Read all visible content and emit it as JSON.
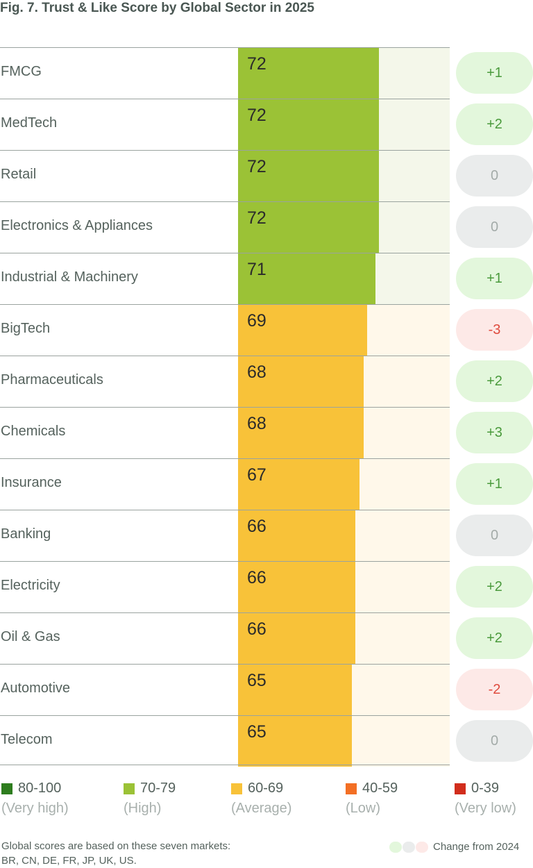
{
  "chart_data": {
    "type": "bar",
    "orientation": "horizontal",
    "title": "Fig. 7. Trust & Like Score by Global Sector in 2025",
    "categories": [
      "FMCG",
      "MedTech",
      "Retail",
      "Electronics & Appliances",
      "Industrial & Machinery",
      "BigTech",
      "Pharmaceuticals",
      "Chemicals",
      "Insurance",
      "Banking",
      "Electricity",
      "Oil & Gas",
      "Automotive",
      "Telecom"
    ],
    "values": [
      72,
      72,
      72,
      72,
      71,
      69,
      68,
      68,
      67,
      66,
      66,
      66,
      65,
      65
    ],
    "changes": [
      "+1",
      "+2",
      "0",
      "0",
      "+1",
      "-3",
      "+2",
      "+3",
      "+1",
      "0",
      "+2",
      "+2",
      "-2",
      "0"
    ],
    "xlim": [
      36,
      90
    ],
    "legend": [
      {
        "range": "80-100",
        "label": "(Very high)",
        "color": "#2e7d1e"
      },
      {
        "range": "70-79",
        "label": "(High)",
        "color": "#9bc236"
      },
      {
        "range": "60-69",
        "label": "(Average)",
        "color": "#f8c239"
      },
      {
        "range": "40-59",
        "label": "(Low)",
        "color": "#f36f24"
      },
      {
        "range": "0-39",
        "label": "(Very low)",
        "color": "#d12d1c"
      }
    ],
    "change_label": "Change from 2024"
  },
  "footnote": {
    "line1": "Global scores are based on these seven markets:",
    "line2": "BR, CN, DE, FR, JP, UK, US."
  },
  "colors": {
    "high_bar": "#9bc236",
    "high_track": "#f4f7ea",
    "average_bar": "#f8c239",
    "average_track": "#fff8ea",
    "pill_positive_bg": "#e3f7dc",
    "pill_positive_text": "#4a9a3c",
    "pill_zero_bg": "#eaecec",
    "pill_zero_text": "#a3aba8",
    "pill_negative_bg": "#fde9e7",
    "pill_negative_text": "#df4b3e"
  }
}
